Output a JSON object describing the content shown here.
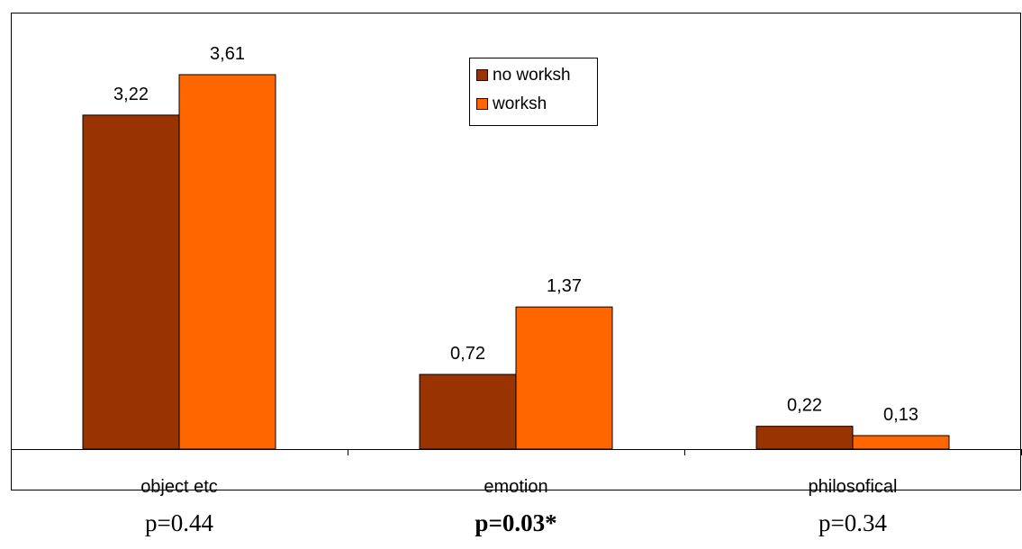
{
  "chart_data": {
    "type": "bar",
    "categories": [
      "object etc",
      "emotion",
      "philosofical"
    ],
    "series": [
      {
        "name": "no worksh",
        "values": [
          3.22,
          0.72,
          0.22
        ],
        "labels": [
          "3,22",
          "0,72",
          "0,22"
        ],
        "color": "#993300"
      },
      {
        "name": "worksh",
        "values": [
          3.61,
          1.37,
          0.13
        ],
        "labels": [
          "3,61",
          "1,37",
          "0,13"
        ],
        "color": "#FF6600"
      }
    ],
    "ylim": [
      0,
      4.0
    ],
    "legend_position": "top-center",
    "grid": false,
    "title": "",
    "xlabel": "",
    "ylabel": ""
  },
  "annotations": {
    "p_values": [
      {
        "text": "p=0.44",
        "bold": false
      },
      {
        "text": "p=0.03*",
        "bold": true
      },
      {
        "text": "p=0.34",
        "bold": false
      }
    ]
  }
}
